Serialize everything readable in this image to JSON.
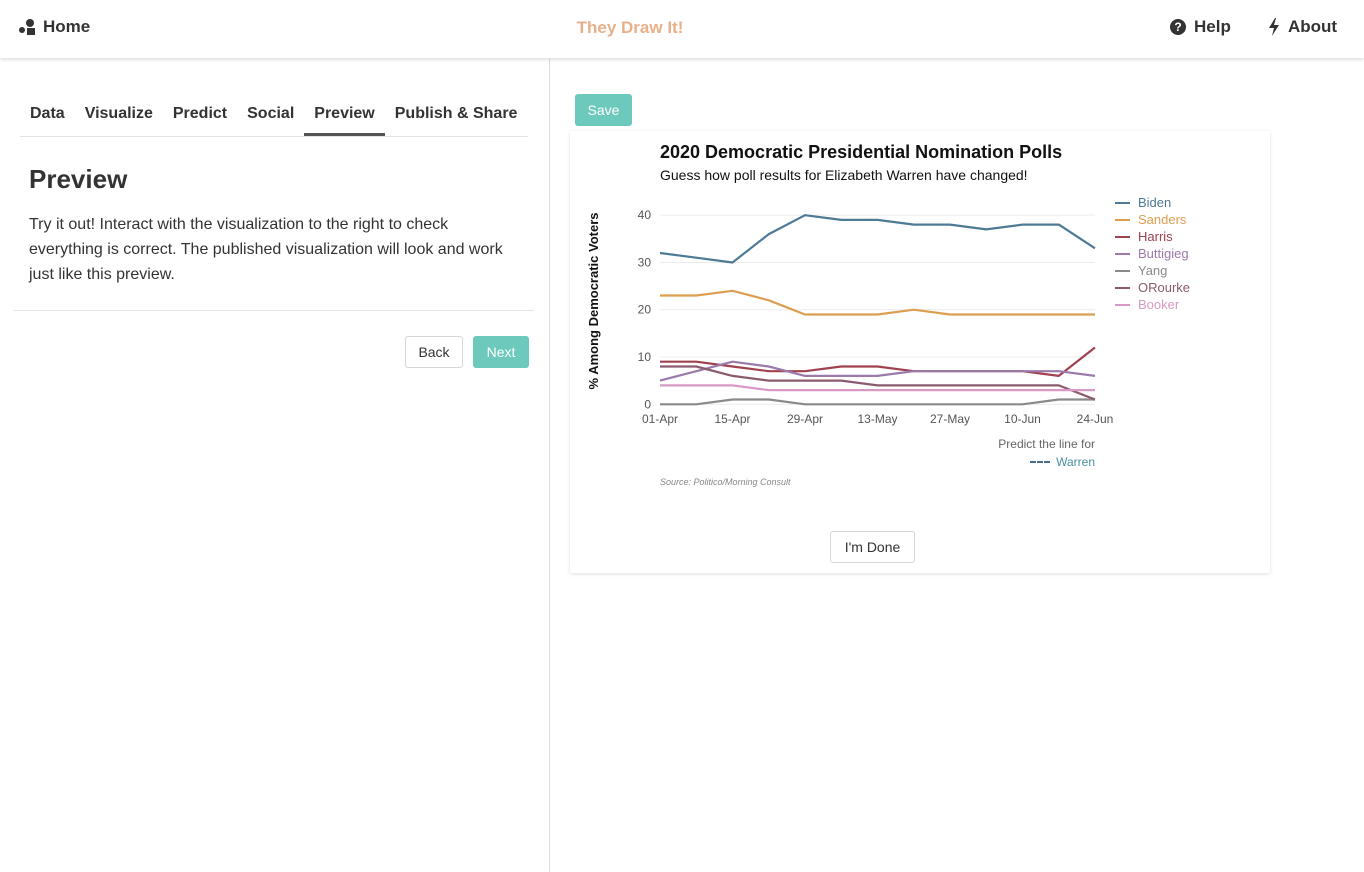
{
  "nav": {
    "home_label": "Home",
    "brand": "They Draw It!",
    "help_label": "Help",
    "about_label": "About",
    "icons": {
      "home": "shapes-icon",
      "help": "question-circle-icon",
      "about": "bolt-icon"
    }
  },
  "tabs": [
    {
      "label": "Data",
      "active": false
    },
    {
      "label": "Visualize",
      "active": false
    },
    {
      "label": "Predict",
      "active": false
    },
    {
      "label": "Social",
      "active": false
    },
    {
      "label": "Preview",
      "active": true
    },
    {
      "label": "Publish & Share",
      "active": false
    }
  ],
  "panel": {
    "title": "Preview",
    "description": "Try it out! Interact with the visualization to the right to check everything is correct. The published visualization will look and work just like this preview.",
    "back_label": "Back",
    "next_label": "Next"
  },
  "preview": {
    "save_label": "Save",
    "done_label": "I'm Done",
    "predict_label": "Predict the line for",
    "predict_series": "Warren",
    "source": "Source: Politico/Morning Consult"
  },
  "colors": {
    "accent": "#6cc9bb",
    "brand": "#e8b08a"
  },
  "chart_data": {
    "type": "line",
    "title": "2020 Democratic Presidential Nomination Polls",
    "subtitle": "Guess how poll results for Elizabeth Warren have changed!",
    "xlabel": "",
    "ylabel": "% Among Democratic Voters",
    "x": [
      "01-Apr",
      "08-Apr",
      "15-Apr",
      "22-Apr",
      "29-Apr",
      "06-May",
      "13-May",
      "20-May",
      "27-May",
      "03-Jun",
      "10-Jun",
      "17-Jun",
      "24-Jun"
    ],
    "x_ticks": [
      "01-Apr",
      "15-Apr",
      "29-Apr",
      "13-May",
      "27-May",
      "10-Jun",
      "24-Jun"
    ],
    "y_ticks": [
      0,
      10,
      20,
      30,
      40
    ],
    "ylim": [
      -1,
      43
    ],
    "grid": true,
    "legend": "right",
    "series": [
      {
        "name": "Biden",
        "color": "#4e7a96",
        "values": [
          32,
          31,
          30,
          36,
          40,
          39,
          39,
          38,
          38,
          37,
          38,
          38,
          33
        ]
      },
      {
        "name": "Sanders",
        "color": "#dc9e50",
        "values": [
          23,
          23,
          24,
          22,
          19,
          19,
          19,
          20,
          19,
          19,
          19,
          19,
          19
        ]
      },
      {
        "name": "Harris",
        "color": "#a0414f",
        "values": [
          9,
          9,
          8,
          7,
          7,
          8,
          8,
          7,
          7,
          7,
          7,
          6,
          12
        ]
      },
      {
        "name": "Buttigieg",
        "color": "#9b7aab",
        "values": [
          5,
          7,
          9,
          8,
          6,
          6,
          6,
          7,
          7,
          7,
          7,
          7,
          6
        ]
      },
      {
        "name": "Yang",
        "color": "#8a8a8a",
        "values": [
          0,
          0,
          1,
          1,
          0,
          0,
          0,
          0,
          0,
          0,
          0,
          1,
          1
        ]
      },
      {
        "name": "ORourke",
        "color": "#8c5a6e",
        "values": [
          8,
          8,
          6,
          5,
          5,
          5,
          4,
          4,
          4,
          4,
          4,
          4,
          1
        ]
      },
      {
        "name": "Booker",
        "color": "#d89ac4",
        "values": [
          4,
          4,
          4,
          3,
          3,
          3,
          3,
          3,
          3,
          3,
          3,
          3,
          3
        ]
      }
    ]
  }
}
